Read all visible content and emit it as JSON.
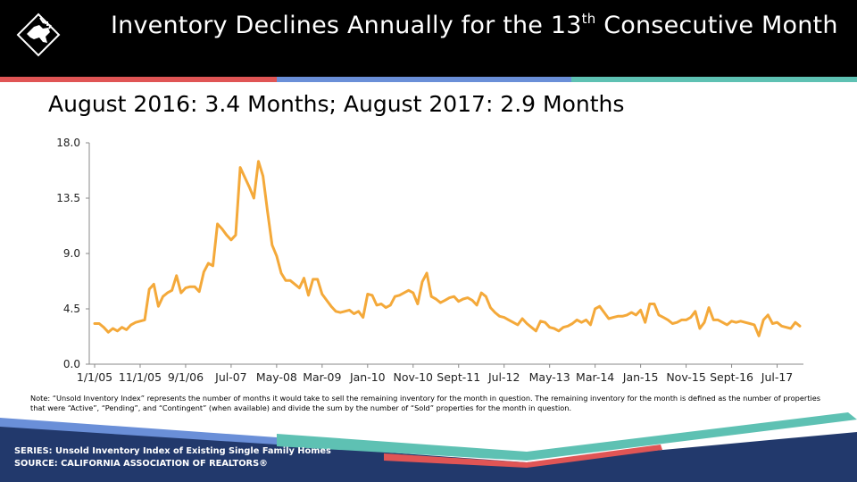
{
  "header": {
    "title_main": "Inventory Declines Annually for the 13",
    "title_sup": "th",
    "title_end": " Consecutive Month",
    "logo_icon": "california-bear-icon"
  },
  "subtitle": "August 2016: 3.4  Months; August 2017: 2.9 Months",
  "colors": {
    "header_bg": "#000000",
    "line": "#F4A93A",
    "stripe_red": "#E05555",
    "stripe_blue": "#6A8FD8",
    "stripe_teal": "#5EC1B3",
    "footer_navy": "#22396C"
  },
  "chart_data": {
    "type": "line",
    "title": "",
    "xlabel": "",
    "ylabel": "",
    "ylim": [
      0,
      18
    ],
    "yticks": [
      "0.0",
      "4.5",
      "9.0",
      "13.5",
      "18.0"
    ],
    "x_tick_labels": [
      "1/1/05",
      "11/1/05",
      "9/1/06",
      "Jul-07",
      "May-08",
      "Mar-09",
      "Jan-10",
      "Nov-10",
      "Sept-11",
      "Jul-12",
      "May-13",
      "Mar-14",
      "Jan-15",
      "Nov-15",
      "Sept-16",
      "Jul-17"
    ],
    "x_tick_index": [
      0,
      10,
      20,
      30,
      40,
      50,
      60,
      70,
      80,
      90,
      100,
      110,
      120,
      130,
      140,
      150
    ],
    "grid": false,
    "series": [
      {
        "values": [
          3.3,
          3.3,
          3.0,
          2.6,
          2.9,
          2.7,
          3.0,
          2.8,
          3.2,
          3.4,
          3.5,
          3.6,
          6.1,
          6.5,
          4.7,
          5.5,
          5.8,
          6.0,
          7.2,
          5.8,
          6.2,
          6.3,
          6.3,
          5.9,
          7.5,
          8.2,
          8.0,
          11.4,
          11.0,
          10.5,
          10.1,
          10.5,
          16.0,
          15.2,
          14.4,
          13.5,
          16.5,
          15.3,
          12.4,
          9.7,
          8.8,
          7.4,
          6.8,
          6.8,
          6.5,
          6.2,
          7.0,
          5.6,
          6.9,
          6.9,
          5.7,
          5.2,
          4.7,
          4.3,
          4.2,
          4.3,
          4.4,
          4.1,
          4.3,
          3.8,
          5.7,
          5.6,
          4.8,
          4.9,
          4.6,
          4.8,
          5.5,
          5.6,
          5.8,
          6.0,
          5.8,
          4.9,
          6.7,
          7.4,
          5.5,
          5.3,
          5.0,
          5.2,
          5.4,
          5.5,
          5.1,
          5.3,
          5.4,
          5.2,
          4.8,
          5.8,
          5.5,
          4.6,
          4.2,
          3.9,
          3.8,
          3.6,
          3.4,
          3.2,
          3.7,
          3.3,
          3.0,
          2.7,
          3.5,
          3.4,
          3.0,
          2.9,
          2.7,
          3.0,
          3.1,
          3.3,
          3.6,
          3.4,
          3.6,
          3.2,
          4.5,
          4.7,
          4.2,
          3.7,
          3.8,
          3.9,
          3.9,
          4.0,
          4.2,
          4.0,
          4.4,
          3.4,
          4.9,
          4.9,
          4.0,
          3.8,
          3.6,
          3.3,
          3.4,
          3.6,
          3.6,
          3.8,
          4.3,
          2.9,
          3.4,
          4.6,
          3.6,
          3.6,
          3.4,
          3.2,
          3.5,
          3.4,
          3.5,
          3.4,
          3.3,
          3.2,
          2.3,
          3.6,
          4.0,
          3.3,
          3.4,
          3.1,
          3.0,
          2.9,
          3.4,
          3.1
        ]
      }
    ]
  },
  "note": "Note: “Unsold Inventory Index” represents the number of months it would take to sell the remaining inventory for the month in question. The remaining inventory for the month is defined as the number of properties that were “Active”, “Pending”, and “Contingent” (when available) and divide the sum by the number of “Sold” properties for the month in question.",
  "footer": {
    "series_label": "SERIES: Unsold Inventory Index of Existing Single Family Homes",
    "source_label": "SOURCE:  CALIFORNIA ASSOCIATION OF REALTORS®"
  }
}
